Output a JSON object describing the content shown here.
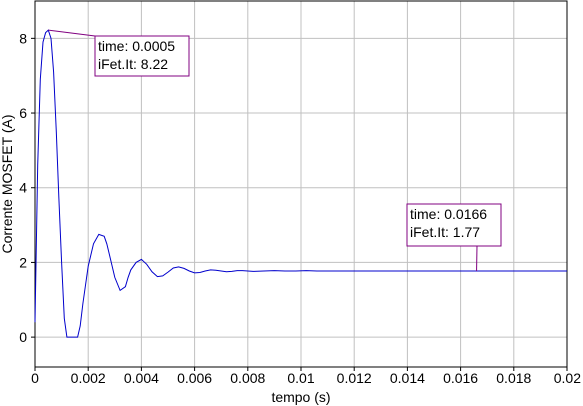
{
  "chart_data": {
    "type": "line",
    "title": "",
    "xlabel": "tempo (s)",
    "ylabel": "Corrente MOSFET (A)",
    "xlim": [
      0,
      0.02
    ],
    "ylim": [
      -0.8,
      9
    ],
    "grid": true,
    "x_ticks": [
      0,
      0.002,
      0.004,
      0.006,
      0.008,
      0.01,
      0.012,
      0.014,
      0.016,
      0.018,
      0.02
    ],
    "x_tick_labels": [
      "0",
      "0.002",
      "0.004",
      "0.006",
      "0.008",
      "0.01",
      "0.012",
      "0.014",
      "0.016",
      "0.018",
      "0.02"
    ],
    "y_ticks": [
      0,
      2,
      4,
      6,
      8
    ],
    "y_tick_labels": [
      "0",
      "2",
      "4",
      "6",
      "8"
    ],
    "series": [
      {
        "color": "#0000cc",
        "x": [
          0,
          0.0001,
          0.0002,
          0.0003,
          0.0004,
          0.0005,
          0.0006,
          0.0007,
          0.0008,
          0.0009,
          0.001,
          0.0011,
          0.0012,
          0.0014,
          0.0016,
          0.0017,
          0.0018,
          0.002,
          0.0022,
          0.0024,
          0.0026,
          0.0027,
          0.0028,
          0.003,
          0.0032,
          0.0034,
          0.0035,
          0.0036,
          0.0038,
          0.004,
          0.0042,
          0.0044,
          0.0046,
          0.0048,
          0.005,
          0.0052,
          0.0054,
          0.0056,
          0.0058,
          0.006,
          0.0062,
          0.0064,
          0.0066,
          0.0068,
          0.007,
          0.0072,
          0.0074,
          0.0076,
          0.0078,
          0.008,
          0.0082,
          0.0086,
          0.009,
          0.0094,
          0.0098,
          0.0102,
          0.0106,
          0.011,
          0.012,
          0.013,
          0.014,
          0.015,
          0.016,
          0.017,
          0.018,
          0.019,
          0.02
        ],
        "y": [
          0.4,
          4.6,
          6.9,
          7.9,
          8.15,
          8.22,
          8.0,
          7.1,
          5.5,
          3.7,
          2.0,
          0.5,
          0,
          0,
          0,
          0.3,
          0.9,
          1.9,
          2.5,
          2.75,
          2.7,
          2.5,
          2.2,
          1.6,
          1.25,
          1.35,
          1.6,
          1.8,
          2.0,
          2.08,
          1.95,
          1.75,
          1.62,
          1.64,
          1.74,
          1.85,
          1.88,
          1.84,
          1.77,
          1.72,
          1.73,
          1.77,
          1.8,
          1.79,
          1.77,
          1.75,
          1.76,
          1.78,
          1.78,
          1.77,
          1.76,
          1.77,
          1.78,
          1.77,
          1.77,
          1.78,
          1.77,
          1.77,
          1.77,
          1.77,
          1.77,
          1.77,
          1.77,
          1.77,
          1.77,
          1.77,
          1.77
        ]
      }
    ],
    "annotations": [
      {
        "x": 0.0005,
        "y": 8.22,
        "lines": [
          "time: 0.0005",
          "iFet.It: 8.22"
        ]
      },
      {
        "x": 0.0166,
        "y": 1.77,
        "lines": [
          "time: 0.0166",
          "iFet.It: 1.77"
        ]
      }
    ],
    "colors": {
      "series": "#0000cc",
      "annotation_border": "#800080",
      "grid": "#c0c0c0"
    }
  }
}
